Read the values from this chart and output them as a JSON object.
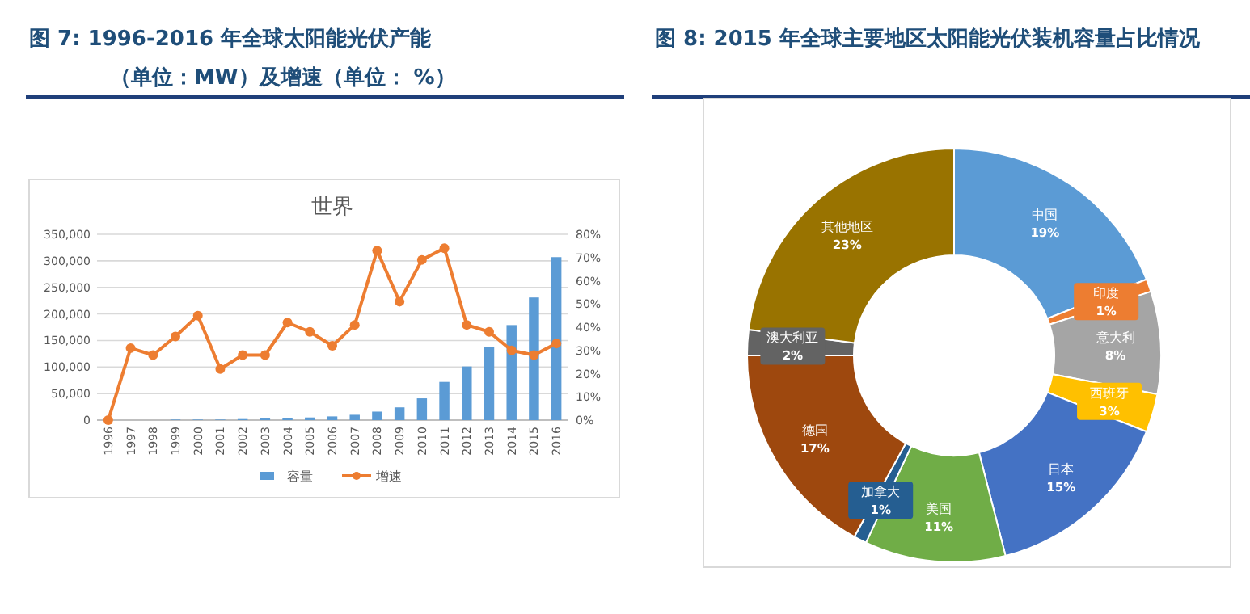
{
  "chart_data": [
    {
      "type": "bar",
      "title": "图 7: 1996-2016 年全球太阳能光伏产能",
      "subtitle": "（单位：MW）及增速（单位： %）",
      "annotations": [
        "世界"
      ],
      "categories": [
        "1996",
        "1997",
        "1998",
        "1999",
        "2000",
        "2001",
        "2002",
        "2003",
        "2004",
        "2005",
        "2006",
        "2007",
        "2008",
        "2009",
        "2010",
        "2011",
        "2012",
        "2013",
        "2014",
        "2015",
        "2016"
      ],
      "series": [
        {
          "name": "容量",
          "type": "bar",
          "color": "#5b9bd5",
          "values": [
            0,
            0,
            0,
            1000,
            1000,
            1000,
            2000,
            3000,
            4000,
            5000,
            7000,
            10000,
            16000,
            24000,
            41000,
            72000,
            101000,
            138000,
            179000,
            231000,
            307000
          ]
        },
        {
          "name": "增速",
          "type": "line",
          "axis": "y2",
          "color": "#ed7d31",
          "values": [
            0,
            31,
            28,
            36,
            45,
            22,
            28,
            28,
            42,
            38,
            32,
            41,
            73,
            51,
            69,
            74,
            41,
            38,
            30,
            28,
            33
          ]
        }
      ],
      "ylim": [
        0,
        350000
      ],
      "yticks": [
        0,
        {
          "value": 50000,
          "label": "50,000"
        },
        {
          "value": 100000,
          "label": "100,000"
        },
        {
          "value": 150000,
          "label": "150,000"
        },
        {
          "value": 200000,
          "label": "200,000"
        },
        {
          "value": 250000,
          "label": "250,000"
        },
        {
          "value": 300000,
          "label": "300,000"
        },
        {
          "value": 350000,
          "label": "350,000"
        }
      ],
      "y2lim": [
        0,
        80
      ],
      "y2ticks": [
        {
          "value": 0,
          "label": "0%"
        },
        {
          "value": 10,
          "label": "10%"
        },
        {
          "value": 20,
          "label": "20%"
        },
        {
          "value": 30,
          "label": "30%"
        },
        {
          "value": 40,
          "label": "40%"
        },
        {
          "value": 50,
          "label": "50%"
        },
        {
          "value": 60,
          "label": "60%"
        },
        {
          "value": 70,
          "label": "70%"
        },
        {
          "value": 80,
          "label": "80%"
        }
      ],
      "grid": "y",
      "legend": "bottom",
      "marker": "circle"
    },
    {
      "type": "donut",
      "title": "图 8: 2015 年全球主要地区太阳能光伏装机容量占比情况",
      "categories": [
        "中国",
        "印度",
        "意大利",
        "西班牙",
        "日本",
        "美国",
        "加拿大",
        "德国",
        "澳大利亚",
        "其他地区"
      ],
      "values": [
        19,
        1,
        8,
        3,
        15,
        11,
        1,
        17,
        2,
        23
      ],
      "value_labels": [
        "19%",
        "1%",
        "8%",
        "3%",
        "15%",
        "11%",
        "1%",
        "17%",
        "2%",
        "23%"
      ],
      "colors": [
        "#5b9bd5",
        "#ed7d31",
        "#a5a5a5",
        "#ffc000",
        "#4472c4",
        "#70ad47",
        "#255e91",
        "#9e480e",
        "#636363",
        "#997300"
      ]
    }
  ]
}
